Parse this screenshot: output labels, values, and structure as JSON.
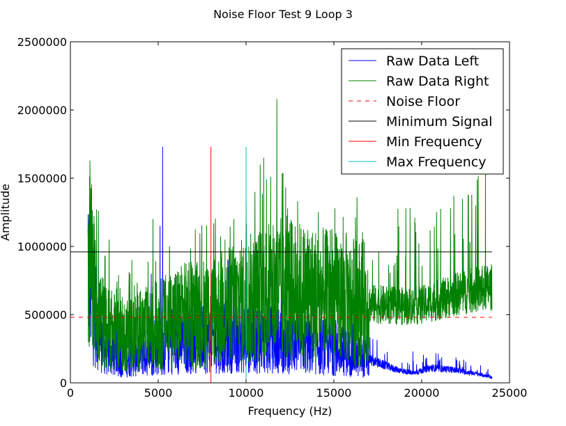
{
  "chart_data": {
    "type": "line",
    "title": "Noise Floor Test 9 Loop 3",
    "xlabel": "Frequency (Hz)",
    "ylabel": "Amplitude",
    "xlim": [
      0,
      25000
    ],
    "ylim": [
      0,
      2500000
    ],
    "xticks": [
      0,
      5000,
      10000,
      15000,
      20000,
      25000
    ],
    "yticks": [
      0,
      500000,
      1000000,
      1500000,
      2000000,
      2500000
    ],
    "grid": false,
    "legend_position": "top-right",
    "series": [
      {
        "name": "Raw Data Left",
        "color": "#0000ff",
        "style": "solid",
        "kind": "noisy",
        "x_range": [
          1000,
          24000
        ],
        "envelope": [
          [
            1000,
            900000
          ],
          [
            1400,
            500000
          ],
          [
            2000,
            250000
          ],
          [
            3000,
            180000
          ],
          [
            5000,
            250000
          ],
          [
            7000,
            320000
          ],
          [
            9000,
            330000
          ],
          [
            11000,
            320000
          ],
          [
            13000,
            300000
          ],
          [
            15000,
            250000
          ],
          [
            17000,
            170000
          ],
          [
            18500,
            100000
          ],
          [
            19500,
            70000
          ],
          [
            20500,
            110000
          ],
          [
            21500,
            100000
          ],
          [
            23000,
            70000
          ],
          [
            24000,
            40000
          ]
        ],
        "spikes": [
          [
            5250,
            1730000
          ],
          [
            5100,
            1150000
          ],
          [
            9000,
            900000
          ],
          [
            9800,
            750000
          ],
          [
            12000,
            680000
          ],
          [
            7300,
            640000
          ],
          [
            4600,
            800000
          ],
          [
            19500,
            230000
          ]
        ]
      },
      {
        "name": "Raw Data Right",
        "color": "#008000",
        "style": "solid",
        "kind": "noisy",
        "x_range": [
          1000,
          24000
        ],
        "envelope": [
          [
            1000,
            1000000
          ],
          [
            1500,
            550000
          ],
          [
            2000,
            400000
          ],
          [
            3000,
            350000
          ],
          [
            4000,
            380000
          ],
          [
            5000,
            420000
          ],
          [
            6000,
            480000
          ],
          [
            7000,
            500000
          ],
          [
            8000,
            520000
          ],
          [
            9000,
            560000
          ],
          [
            10000,
            600000
          ],
          [
            11000,
            650000
          ],
          [
            12000,
            680000
          ],
          [
            13000,
            660000
          ],
          [
            14000,
            640000
          ],
          [
            15000,
            620000
          ],
          [
            16000,
            600000
          ],
          [
            17000,
            580000
          ],
          [
            18000,
            570000
          ],
          [
            19000,
            560000
          ],
          [
            20000,
            570000
          ],
          [
            21000,
            610000
          ],
          [
            22000,
            650000
          ],
          [
            23000,
            680000
          ],
          [
            24000,
            700000
          ]
        ],
        "spikes": [
          [
            11750,
            2080000
          ],
          [
            11000,
            1650000
          ],
          [
            10800,
            1600000
          ],
          [
            12100,
            1540000
          ],
          [
            11400,
            1510000
          ],
          [
            10500,
            1400000
          ],
          [
            10000,
            1330000
          ],
          [
            4700,
            1200000
          ],
          [
            1200,
            1350000
          ],
          [
            1600,
            1260000
          ],
          [
            9300,
            1200000
          ],
          [
            12600,
            1180000
          ],
          [
            13300,
            1060000
          ],
          [
            15700,
            1100000
          ],
          [
            14800,
            1120000
          ],
          [
            8800,
            1050000
          ],
          [
            19600,
            900000
          ],
          [
            17200,
            900000
          ],
          [
            15300,
            980000
          ],
          [
            2200,
            1050000
          ],
          [
            3500,
            900000
          ],
          [
            6500,
            880000
          ]
        ]
      },
      {
        "name": "Noise Floor",
        "color": "#ff0000",
        "style": "dashed",
        "kind": "hline",
        "y": 480000,
        "x_range": [
          0,
          24000
        ]
      },
      {
        "name": "Minimum Signal",
        "color": "#000000",
        "style": "solid",
        "kind": "hline",
        "y": 960000,
        "x_range": [
          0,
          24000
        ]
      },
      {
        "name": "Min Frequency",
        "color": "#ff0000",
        "style": "solid",
        "kind": "vline",
        "x": 8000,
        "y_range": [
          0,
          1730000
        ]
      },
      {
        "name": "Max Frequency",
        "color": "#00bfbf",
        "style": "solid",
        "kind": "vline",
        "x": 10000,
        "y_range": [
          0,
          1730000
        ]
      }
    ]
  }
}
